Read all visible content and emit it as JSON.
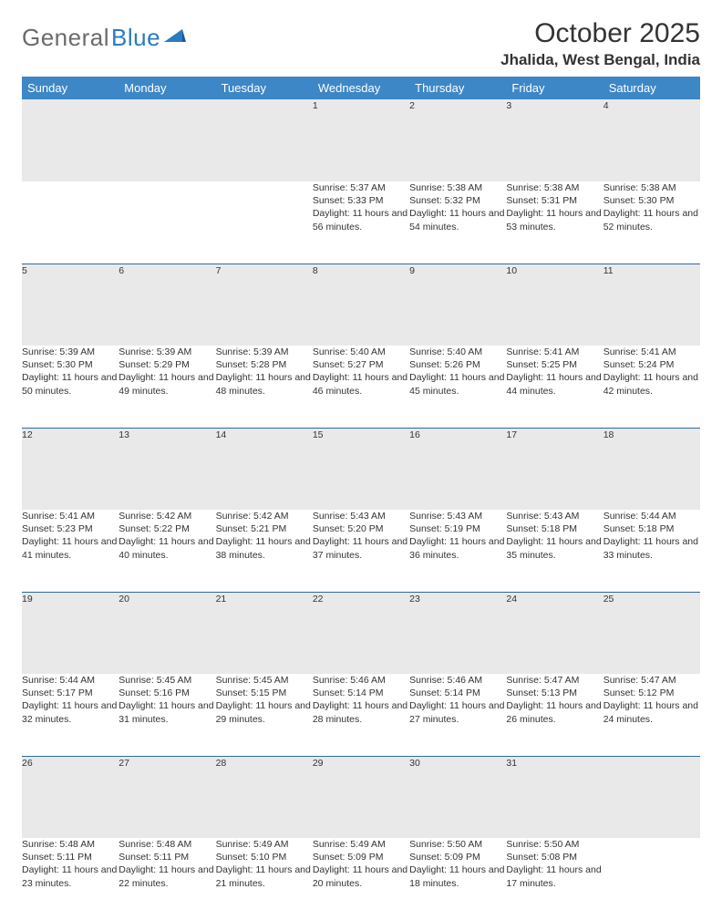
{
  "brand": {
    "text1": "General",
    "text2": "Blue"
  },
  "title": "October 2025",
  "location": "Jhalida, West Bengal, India",
  "colors": {
    "header_bg": "#3d87c7",
    "header_text": "#ffffff",
    "daynum_bg": "#e9e9e9",
    "row_border": "#2d6aa0",
    "brand_gray": "#6b6b6b",
    "brand_blue": "#2b7bbf"
  },
  "day_headers": [
    "Sunday",
    "Monday",
    "Tuesday",
    "Wednesday",
    "Thursday",
    "Friday",
    "Saturday"
  ],
  "weeks": [
    [
      null,
      null,
      null,
      {
        "n": "1",
        "sr": "5:37 AM",
        "ss": "5:33 PM",
        "dl": "11 hours and 56 minutes."
      },
      {
        "n": "2",
        "sr": "5:38 AM",
        "ss": "5:32 PM",
        "dl": "11 hours and 54 minutes."
      },
      {
        "n": "3",
        "sr": "5:38 AM",
        "ss": "5:31 PM",
        "dl": "11 hours and 53 minutes."
      },
      {
        "n": "4",
        "sr": "5:38 AM",
        "ss": "5:30 PM",
        "dl": "11 hours and 52 minutes."
      }
    ],
    [
      {
        "n": "5",
        "sr": "5:39 AM",
        "ss": "5:30 PM",
        "dl": "11 hours and 50 minutes."
      },
      {
        "n": "6",
        "sr": "5:39 AM",
        "ss": "5:29 PM",
        "dl": "11 hours and 49 minutes."
      },
      {
        "n": "7",
        "sr": "5:39 AM",
        "ss": "5:28 PM",
        "dl": "11 hours and 48 minutes."
      },
      {
        "n": "8",
        "sr": "5:40 AM",
        "ss": "5:27 PM",
        "dl": "11 hours and 46 minutes."
      },
      {
        "n": "9",
        "sr": "5:40 AM",
        "ss": "5:26 PM",
        "dl": "11 hours and 45 minutes."
      },
      {
        "n": "10",
        "sr": "5:41 AM",
        "ss": "5:25 PM",
        "dl": "11 hours and 44 minutes."
      },
      {
        "n": "11",
        "sr": "5:41 AM",
        "ss": "5:24 PM",
        "dl": "11 hours and 42 minutes."
      }
    ],
    [
      {
        "n": "12",
        "sr": "5:41 AM",
        "ss": "5:23 PM",
        "dl": "11 hours and 41 minutes."
      },
      {
        "n": "13",
        "sr": "5:42 AM",
        "ss": "5:22 PM",
        "dl": "11 hours and 40 minutes."
      },
      {
        "n": "14",
        "sr": "5:42 AM",
        "ss": "5:21 PM",
        "dl": "11 hours and 38 minutes."
      },
      {
        "n": "15",
        "sr": "5:43 AM",
        "ss": "5:20 PM",
        "dl": "11 hours and 37 minutes."
      },
      {
        "n": "16",
        "sr": "5:43 AM",
        "ss": "5:19 PM",
        "dl": "11 hours and 36 minutes."
      },
      {
        "n": "17",
        "sr": "5:43 AM",
        "ss": "5:18 PM",
        "dl": "11 hours and 35 minutes."
      },
      {
        "n": "18",
        "sr": "5:44 AM",
        "ss": "5:18 PM",
        "dl": "11 hours and 33 minutes."
      }
    ],
    [
      {
        "n": "19",
        "sr": "5:44 AM",
        "ss": "5:17 PM",
        "dl": "11 hours and 32 minutes."
      },
      {
        "n": "20",
        "sr": "5:45 AM",
        "ss": "5:16 PM",
        "dl": "11 hours and 31 minutes."
      },
      {
        "n": "21",
        "sr": "5:45 AM",
        "ss": "5:15 PM",
        "dl": "11 hours and 29 minutes."
      },
      {
        "n": "22",
        "sr": "5:46 AM",
        "ss": "5:14 PM",
        "dl": "11 hours and 28 minutes."
      },
      {
        "n": "23",
        "sr": "5:46 AM",
        "ss": "5:14 PM",
        "dl": "11 hours and 27 minutes."
      },
      {
        "n": "24",
        "sr": "5:47 AM",
        "ss": "5:13 PM",
        "dl": "11 hours and 26 minutes."
      },
      {
        "n": "25",
        "sr": "5:47 AM",
        "ss": "5:12 PM",
        "dl": "11 hours and 24 minutes."
      }
    ],
    [
      {
        "n": "26",
        "sr": "5:48 AM",
        "ss": "5:11 PM",
        "dl": "11 hours and 23 minutes."
      },
      {
        "n": "27",
        "sr": "5:48 AM",
        "ss": "5:11 PM",
        "dl": "11 hours and 22 minutes."
      },
      {
        "n": "28",
        "sr": "5:49 AM",
        "ss": "5:10 PM",
        "dl": "11 hours and 21 minutes."
      },
      {
        "n": "29",
        "sr": "5:49 AM",
        "ss": "5:09 PM",
        "dl": "11 hours and 20 minutes."
      },
      {
        "n": "30",
        "sr": "5:50 AM",
        "ss": "5:09 PM",
        "dl": "11 hours and 18 minutes."
      },
      {
        "n": "31",
        "sr": "5:50 AM",
        "ss": "5:08 PM",
        "dl": "11 hours and 17 minutes."
      },
      null
    ]
  ],
  "labels": {
    "sunrise": "Sunrise:",
    "sunset": "Sunset:",
    "daylight": "Daylight:"
  }
}
